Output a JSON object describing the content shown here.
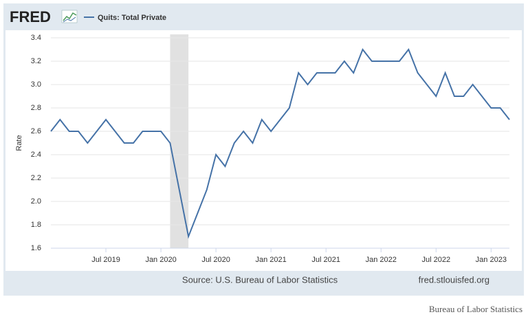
{
  "chart_data": {
    "type": "line",
    "logo": "FRED",
    "y_label": "Rate",
    "source": "Source: U.S. Bureau of Labor Statistics",
    "site": "fred.stlouisfed.org",
    "caption": "Bureau of Labor Statistics",
    "x": [
      "2019-01",
      "2019-02",
      "2019-03",
      "2019-04",
      "2019-05",
      "2019-06",
      "2019-07",
      "2019-08",
      "2019-09",
      "2019-10",
      "2019-11",
      "2019-12",
      "2020-01",
      "2020-02",
      "2020-03",
      "2020-04",
      "2020-05",
      "2020-06",
      "2020-07",
      "2020-08",
      "2020-09",
      "2020-10",
      "2020-11",
      "2020-12",
      "2021-01",
      "2021-02",
      "2021-03",
      "2021-04",
      "2021-05",
      "2021-06",
      "2021-07",
      "2021-08",
      "2021-09",
      "2021-10",
      "2021-11",
      "2021-12",
      "2022-01",
      "2022-02",
      "2022-03",
      "2022-04",
      "2022-05",
      "2022-06",
      "2022-07",
      "2022-08",
      "2022-09",
      "2022-10",
      "2022-11",
      "2022-12",
      "2023-01",
      "2023-02",
      "2023-03"
    ],
    "series": [
      {
        "name": "Quits: Total Private",
        "color": "#4572a7",
        "values": [
          2.6,
          2.7,
          2.6,
          2.6,
          2.5,
          2.6,
          2.7,
          2.6,
          2.5,
          2.5,
          2.6,
          2.6,
          2.6,
          2.5,
          2.1,
          1.7,
          1.9,
          2.1,
          2.4,
          2.3,
          2.5,
          2.6,
          2.5,
          2.7,
          2.6,
          2.7,
          2.8,
          3.1,
          3.0,
          3.1,
          3.1,
          3.1,
          3.2,
          3.1,
          3.3,
          3.2,
          3.2,
          3.2,
          3.2,
          3.3,
          3.1,
          3.0,
          2.9,
          3.1,
          2.9,
          2.9,
          3.0,
          2.9,
          2.8,
          2.8,
          2.7
        ]
      }
    ],
    "recession": [
      "2020-02",
      "2020-04"
    ],
    "xlim": [
      "2019-01",
      "2023-03"
    ],
    "xticks": [
      {
        "value": "2019-07",
        "label": "Jul 2019"
      },
      {
        "value": "2020-01",
        "label": "Jan 2020"
      },
      {
        "value": "2020-07",
        "label": "Jul 2020"
      },
      {
        "value": "2021-01",
        "label": "Jan 2021"
      },
      {
        "value": "2021-07",
        "label": "Jul 2021"
      },
      {
        "value": "2022-01",
        "label": "Jan 2022"
      },
      {
        "value": "2022-07",
        "label": "Jul 2022"
      },
      {
        "value": "2023-01",
        "label": "Jan 2023"
      }
    ],
    "ylim": [
      1.6,
      3.4
    ],
    "yticks": [
      1.6,
      1.8,
      {
        "value": 2,
        "label": "2.0"
      },
      2.2,
      2.4,
      2.6,
      2.8,
      {
        "value": 3,
        "label": "3.0"
      },
      3.2,
      3.4
    ],
    "grid": true
  }
}
